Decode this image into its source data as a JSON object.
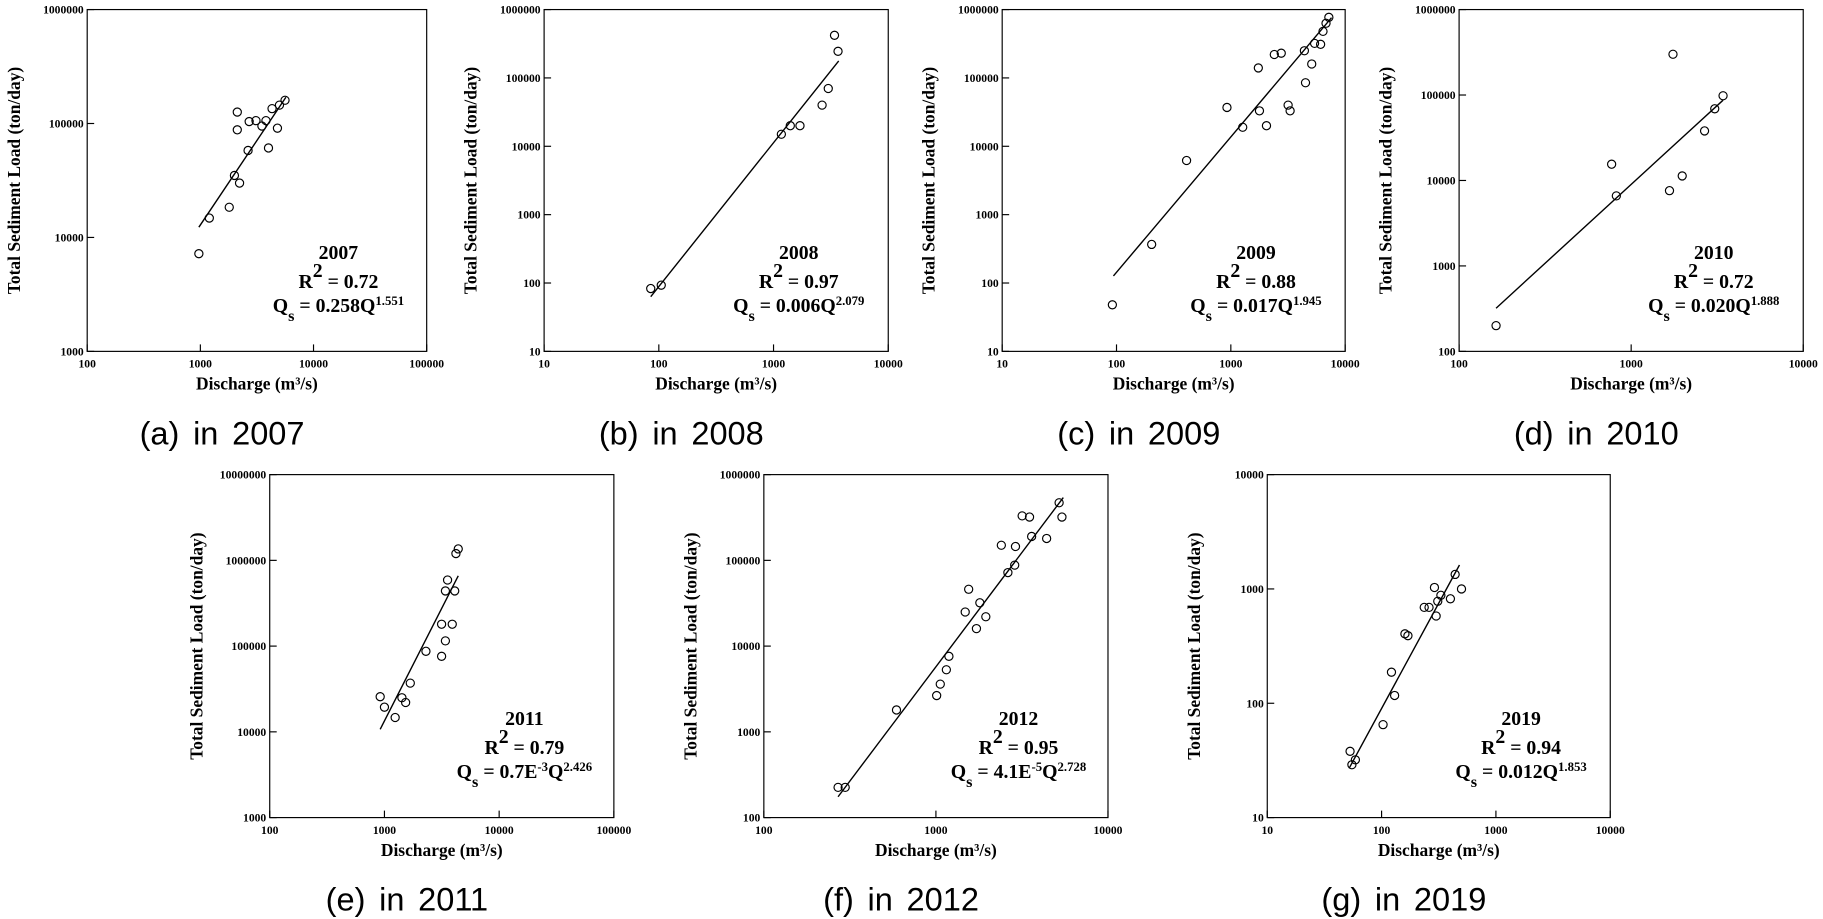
{
  "chart_data": [
    {
      "type": "scatter",
      "caption": "(a) in 2007",
      "xlabel": "Discharge (m³/s)",
      "ylabel": "Total Sediment Load (ton/day)",
      "log_x": true,
      "log_y": true,
      "marker_color": "#000000",
      "xlim": [
        100,
        100000
      ],
      "ylim": [
        1000,
        1000000
      ],
      "xticks": [
        100,
        1000,
        10000,
        100000
      ],
      "yticks": [
        1000,
        10000,
        100000,
        1000000
      ],
      "x": [
        970,
        1200,
        1800,
        2000,
        2220,
        2120,
        2120,
        2640,
        2700,
        3100,
        3500,
        3800,
        4000,
        4300,
        4800,
        5000,
        5600
      ],
      "y": [
        7200,
        14800,
        18400,
        35000,
        30000,
        88000,
        126000,
        58000,
        104000,
        106000,
        95000,
        106000,
        61000,
        135000,
        91000,
        145000,
        160000
      ],
      "fit": {
        "x": [
          970,
          5700
        ],
        "y": [
          12300,
          170000
        ]
      },
      "annotation": {
        "year": "2007",
        "r2": [
          {
            "text": "R"
          },
          {
            "text": "2",
            "pos": "sup"
          },
          {
            "text": " = 0.72"
          }
        ],
        "equation": [
          {
            "text": "Q"
          },
          {
            "text": "s",
            "pos": "sub"
          },
          {
            "text": " = 0.258Q"
          },
          {
            "text": "1.551",
            "pos": "sup"
          }
        ]
      }
    },
    {
      "type": "scatter",
      "caption": "(b) in 2008",
      "xlabel": "Discharge (m³/s)",
      "ylabel": "Total Sediment Load (ton/day)",
      "log_x": true,
      "log_y": true,
      "marker_color": "#000000",
      "xlim": [
        10,
        10000
      ],
      "ylim": [
        10,
        1000000
      ],
      "xticks": [
        10,
        100,
        1000,
        10000
      ],
      "yticks": [
        10,
        100,
        1000,
        10000,
        100000,
        1000000
      ],
      "x": [
        85,
        105,
        1170,
        1400,
        1700,
        2650,
        3000,
        3400,
        3650
      ],
      "y": [
        83,
        93,
        15000,
        20000,
        20000,
        40000,
        70000,
        420000,
        245000
      ],
      "fit": {
        "x": [
          85,
          3700
        ],
        "y": [
          63,
          177000
        ]
      },
      "annotation": {
        "year": "2008",
        "r2": [
          {
            "text": "R"
          },
          {
            "text": "2",
            "pos": "sup"
          },
          {
            "text": " = 0.97"
          }
        ],
        "equation": [
          {
            "text": "Q"
          },
          {
            "text": "s",
            "pos": "sub"
          },
          {
            "text": " = 0.006Q"
          },
          {
            "text": "2.079",
            "pos": "sup"
          }
        ]
      }
    },
    {
      "type": "scatter",
      "caption": "(c) in 2009",
      "xlabel": "Discharge (m³/s)",
      "ylabel": "Total Sediment Load (ton/day)",
      "log_x": true,
      "log_y": true,
      "marker_color": "#000000",
      "xlim": [
        10,
        10000
      ],
      "ylim": [
        10,
        1000000
      ],
      "xticks": [
        10,
        100,
        1000,
        10000
      ],
      "yticks": [
        10,
        100,
        1000,
        10000,
        100000,
        1000000
      ],
      "x": [
        92,
        203,
        410,
        925,
        1270,
        1740,
        1780,
        2050,
        2400,
        2760,
        3170,
        3300,
        4400,
        4500,
        5100,
        5400,
        6100,
        6400,
        6800,
        7200
      ],
      "y": [
        48,
        367,
        6200,
        37000,
        19000,
        140000,
        33000,
        20000,
        220000,
        230000,
        40000,
        33000,
        250000,
        85000,
        160000,
        320000,
        310000,
        480000,
        630000,
        770000
      ],
      "fit": {
        "x": [
          94,
          7600
        ],
        "y": [
          127,
          760000
        ]
      },
      "annotation": {
        "year": "2009",
        "r2": [
          {
            "text": "R"
          },
          {
            "text": "2",
            "pos": "sup"
          },
          {
            "text": " = 0.88"
          }
        ],
        "equation": [
          {
            "text": "Q"
          },
          {
            "text": "s",
            "pos": "sub"
          },
          {
            "text": " = 0.017Q"
          },
          {
            "text": "1.945",
            "pos": "sup"
          }
        ]
      }
    },
    {
      "type": "scatter",
      "caption": "(d) in 2010",
      "xlabel": "Discharge (m³/s)",
      "ylabel": "Total Sediment Load (ton/day)",
      "log_x": true,
      "log_y": true,
      "marker_color": "#000000",
      "xlim": [
        100,
        10000
      ],
      "ylim": [
        100,
        1000000
      ],
      "xticks": [
        100,
        1000,
        10000
      ],
      "yticks": [
        100,
        1000,
        10000,
        100000,
        1000000
      ],
      "x": [
        164,
        770,
        820,
        1670,
        1750,
        1980,
        2670,
        3060,
        3420
      ],
      "y": [
        200,
        15500,
        6600,
        7600,
        300000,
        11300,
        38000,
        69000,
        98000
      ],
      "fit": {
        "x": [
          164,
          3420
        ],
        "y": [
          320,
          87000
        ]
      },
      "annotation": {
        "year": "2010",
        "r2": [
          {
            "text": "R"
          },
          {
            "text": "2",
            "pos": "sup"
          },
          {
            "text": " = 0.72"
          }
        ],
        "equation": [
          {
            "text": "Q"
          },
          {
            "text": "s",
            "pos": "sub"
          },
          {
            "text": " = 0.020Q"
          },
          {
            "text": "1.888",
            "pos": "sup"
          }
        ]
      }
    },
    {
      "type": "scatter",
      "caption": "(e) in 2011",
      "xlabel": "Discharge (m³/s)",
      "ylabel": "Total Sediment Load (ton/day)",
      "log_x": true,
      "log_y": true,
      "marker_color": "#000000",
      "xlim": [
        100,
        100000
      ],
      "ylim": [
        1000,
        10000000
      ],
      "xticks": [
        100,
        1000,
        10000,
        100000
      ],
      "yticks": [
        1000,
        10000,
        100000,
        1000000,
        10000000
      ],
      "x": [
        918,
        1000,
        1240,
        1420,
        1530,
        1680,
        2300,
        3150,
        3150,
        3400,
        3400,
        3550,
        3900,
        4100,
        4200,
        4400
      ],
      "y": [
        25700,
        19400,
        14700,
        25000,
        22000,
        37000,
        87000,
        76000,
        180000,
        115000,
        440000,
        590000,
        180000,
        440000,
        1200000,
        1360000
      ],
      "fit": {
        "x": [
          918,
          4400
        ],
        "y": [
          10700,
          660000
        ]
      },
      "annotation": {
        "year": "2011",
        "r2": [
          {
            "text": "R"
          },
          {
            "text": "2",
            "pos": "sup"
          },
          {
            "text": " = 0.79"
          }
        ],
        "equation": [
          {
            "text": "Q"
          },
          {
            "text": "s",
            "pos": "sub"
          },
          {
            "text": " = 0.7E"
          },
          {
            "text": "-3",
            "pos": "sup"
          },
          {
            "text": "Q"
          },
          {
            "text": "2.426",
            "pos": "sup"
          }
        ]
      }
    },
    {
      "type": "scatter",
      "caption": "(f) in 2012",
      "xlabel": "Discharge (m³/s)",
      "ylabel": "Total Sediment Load (ton/day)",
      "log_x": true,
      "log_y": true,
      "marker_color": "#000000",
      "xlim": [
        100,
        10000
      ],
      "ylim": [
        100,
        1000000
      ],
      "xticks": [
        100,
        1000,
        10000
      ],
      "yticks": [
        100,
        1000,
        10000,
        100000,
        1000000
      ],
      "x": [
        270,
        297,
        590,
        1010,
        1060,
        1150,
        1190,
        1480,
        1550,
        1720,
        1800,
        1950,
        2400,
        2620,
        2870,
        2900,
        3170,
        3500,
        3600,
        4400,
        5200,
        5400
      ],
      "y": [
        225,
        225,
        1800,
        2650,
        3600,
        5300,
        7600,
        25000,
        46000,
        16000,
        32000,
        22000,
        150000,
        72000,
        88000,
        145000,
        330000,
        320000,
        190000,
        180000,
        470000,
        320000
      ],
      "fit": {
        "x": [
          270,
          5500
        ],
        "y": [
          175,
          540000
        ]
      },
      "annotation": {
        "year": "2012",
        "r2": [
          {
            "text": "R"
          },
          {
            "text": "2",
            "pos": "sup"
          },
          {
            "text": " = 0.95"
          }
        ],
        "equation": [
          {
            "text": "Q"
          },
          {
            "text": "s",
            "pos": "sub"
          },
          {
            "text": " = 4.1E"
          },
          {
            "text": "-5",
            "pos": "sup"
          },
          {
            "text": "Q"
          },
          {
            "text": "2.728",
            "pos": "sup"
          }
        ]
      }
    },
    {
      "type": "scatter",
      "caption": "(g) in 2019",
      "xlabel": "Discharge (m³/s)",
      "ylabel": "Total Sediment Load (ton/day)",
      "log_x": true,
      "log_y": true,
      "marker_color": "#000000",
      "xlim": [
        10,
        10000
      ],
      "ylim": [
        10,
        10000
      ],
      "xticks": [
        10,
        100,
        1000,
        10000
      ],
      "yticks": [
        10,
        100,
        1000,
        10000
      ],
      "x": [
        53,
        55,
        59,
        103,
        122,
        130,
        160,
        170,
        236,
        260,
        290,
        300,
        310,
        330,
        400,
        440,
        500
      ],
      "y": [
        38,
        29,
        32,
        65,
        187,
        117,
        405,
        390,
        690,
        690,
        1030,
        580,
        780,
        880,
        820,
        1340,
        1000
      ],
      "fit": {
        "x": [
          52,
          480
        ],
        "y": [
          27,
          1620
        ]
      },
      "annotation": {
        "year": "2019",
        "r2": [
          {
            "text": "R"
          },
          {
            "text": "2",
            "pos": "sup"
          },
          {
            "text": " = 0.94"
          }
        ],
        "equation": [
          {
            "text": "Q"
          },
          {
            "text": "s",
            "pos": "sub"
          },
          {
            "text": " = 0.012Q"
          },
          {
            "text": "1.853",
            "pos": "sup"
          }
        ]
      }
    }
  ]
}
